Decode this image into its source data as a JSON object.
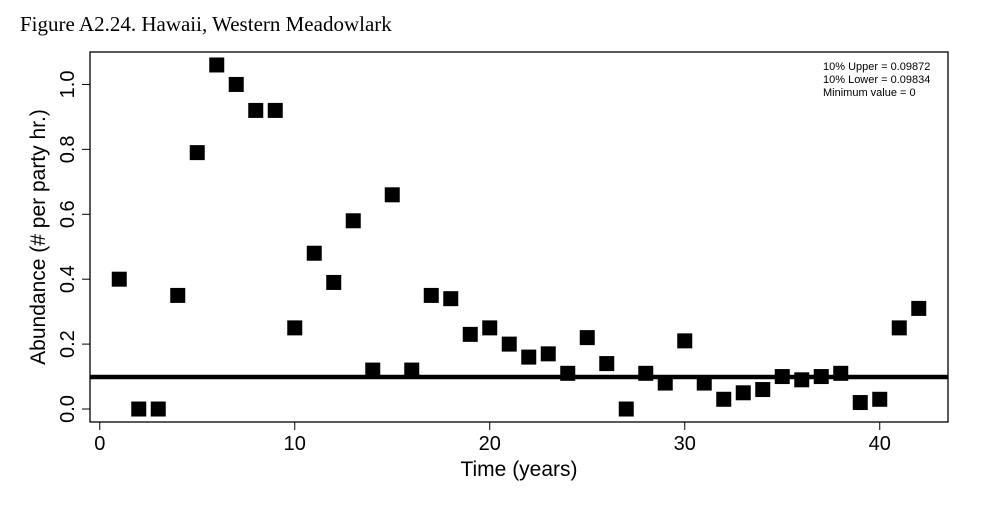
{
  "figure_title": "Figure A2.24. Hawaii, Western Meadowlark",
  "chart_data": {
    "type": "scatter",
    "xlabel": "Time (years)",
    "ylabel": "Abundance (# per party hr.)",
    "xlim": [
      -0.5,
      43.5
    ],
    "ylim": [
      -0.04,
      1.1
    ],
    "xticks": [
      0,
      10,
      20,
      30,
      40
    ],
    "xtick_labels": [
      "0",
      "10",
      "20",
      "30",
      "40"
    ],
    "yticks": [
      0.0,
      0.2,
      0.4,
      0.6,
      0.8,
      1.0
    ],
    "ytick_labels": [
      "0.0",
      "0.2",
      "0.4",
      "0.6",
      "0.8",
      "1.0"
    ],
    "x": [
      1,
      2,
      3,
      4,
      5,
      6,
      7,
      8,
      9,
      10,
      11,
      12,
      13,
      14,
      15,
      16,
      17,
      18,
      19,
      20,
      21,
      22,
      23,
      24,
      25,
      26,
      27,
      28,
      29,
      30,
      31,
      32,
      33,
      34,
      35,
      36,
      37,
      38,
      39,
      40,
      41,
      42
    ],
    "y": [
      0.4,
      0.0,
      0.0,
      0.35,
      0.79,
      1.06,
      1.0,
      0.92,
      0.92,
      0.25,
      0.48,
      0.39,
      0.58,
      0.12,
      0.66,
      0.12,
      0.35,
      0.34,
      0.23,
      0.25,
      0.2,
      0.16,
      0.17,
      0.11,
      0.22,
      0.14,
      0.0,
      0.11,
      0.08,
      0.21,
      0.08,
      0.03,
      0.05,
      0.06,
      0.1,
      0.09,
      0.1,
      0.11,
      0.02,
      0.03,
      0.25,
      0.31
    ],
    "marker": "square",
    "marker_color": "#000000",
    "hline": 0.0985,
    "grid": false,
    "legend_position": "top-right",
    "legend_lines": [
      "10% Upper =  0.09872",
      "10% Lower =  0.09834",
      "Minimum value =  0"
    ]
  }
}
